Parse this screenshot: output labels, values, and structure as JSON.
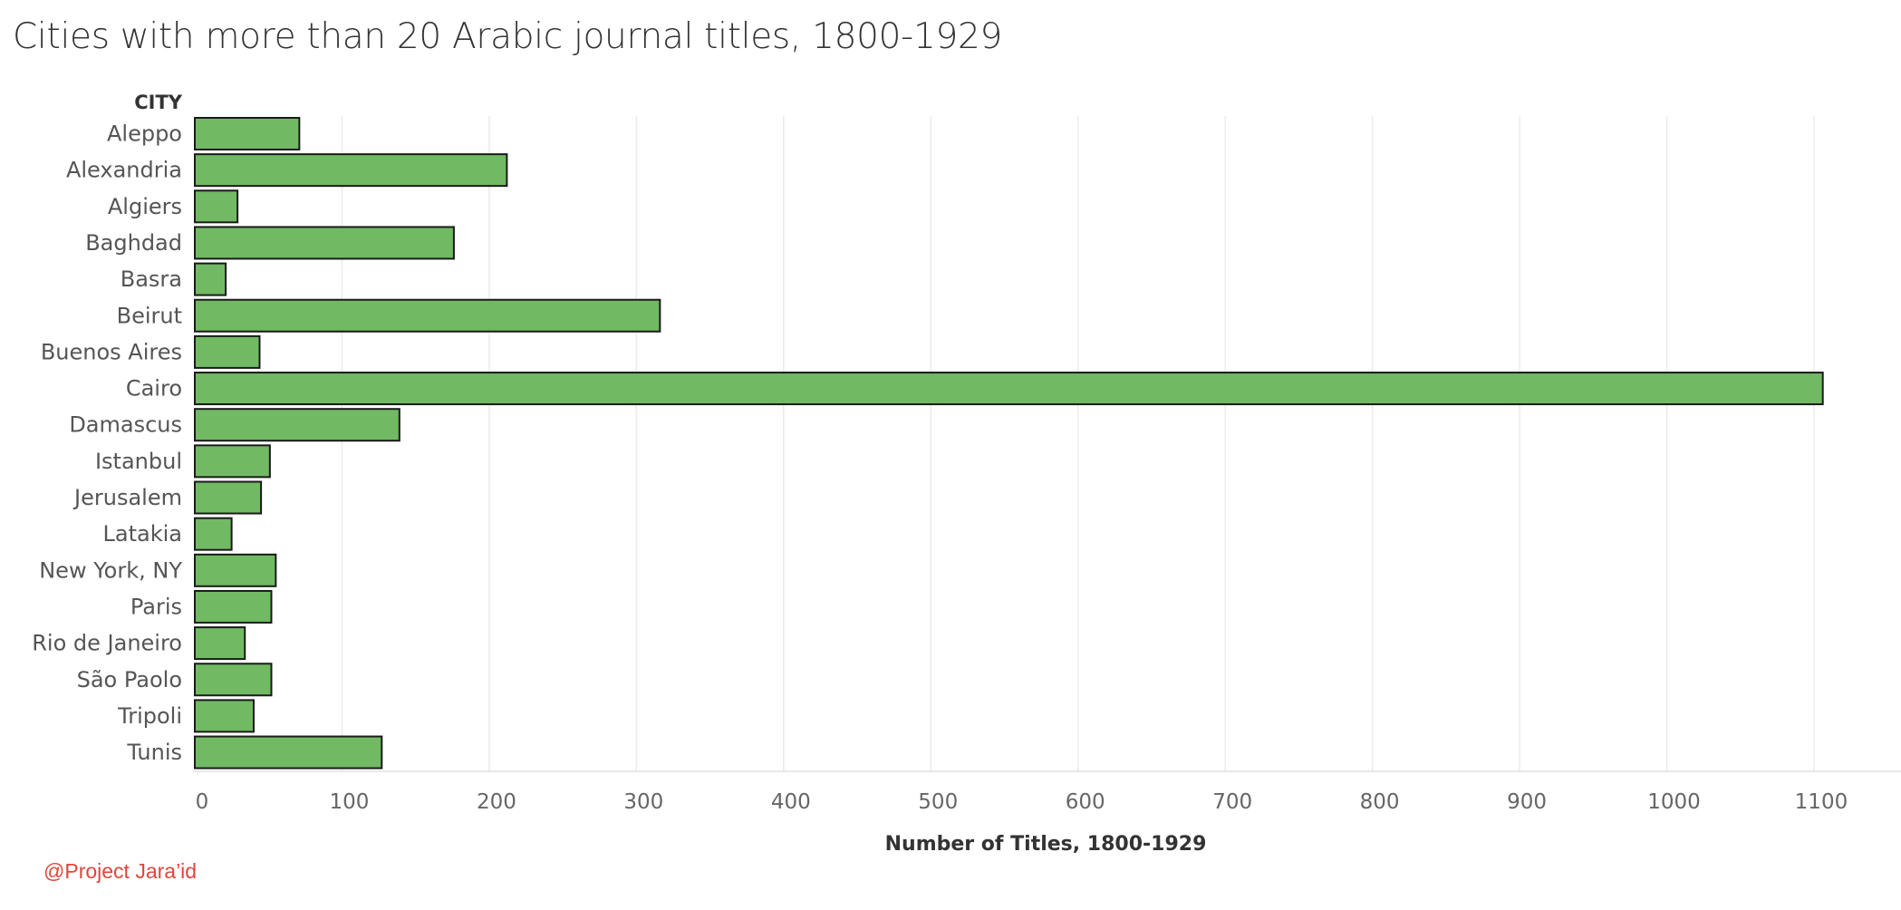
{
  "chart_data": {
    "type": "bar",
    "orientation": "horizontal",
    "title": "Cities with more than 20 Arabic journal titles, 1800-1929",
    "category_header": "CITY",
    "xlabel": "Number of Titles, 1800-1929",
    "xlim": [
      0,
      1160
    ],
    "xticks": [
      0,
      100,
      200,
      300,
      400,
      500,
      600,
      700,
      800,
      900,
      1000,
      1100
    ],
    "grid": "vertical",
    "bar_color": "#71b963",
    "bar_stroke": "#1a1a1a",
    "categories": [
      "Aleppo",
      "Alexandria",
      "Algiers",
      "Baghdad",
      "Basra",
      "Beirut",
      "Buenos Aires",
      "Cairo",
      "Damascus",
      "Istanbul",
      "Jerusalem",
      "Latakia",
      "New York, NY",
      "Paris",
      "Rio de Janeiro",
      "São Paolo",
      "Tripoli",
      "Tunis"
    ],
    "values": [
      71,
      212,
      29,
      176,
      21,
      316,
      44,
      1106,
      139,
      51,
      45,
      25,
      55,
      52,
      34,
      52,
      40,
      127
    ]
  },
  "credit": "@Project Jara’id"
}
